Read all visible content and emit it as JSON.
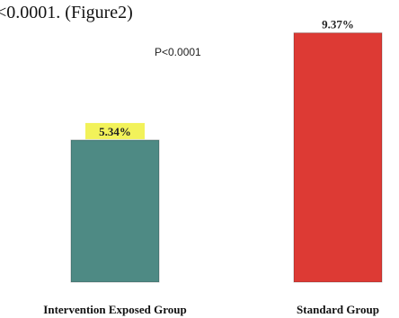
{
  "header_text": "<0.0001. (Figure2)",
  "p_value_text": "P<0.0001",
  "colors": {
    "background": "#ffffff",
    "intervention_bar": "#4e8a84",
    "standard_bar": "#dd3a34",
    "highlight": "#f2f25a"
  },
  "chart_data": {
    "type": "bar",
    "categories": [
      "Intervention Exposed Group",
      "Standard Group"
    ],
    "values": [
      5.34,
      9.37
    ],
    "value_labels": [
      "5.34%",
      "9.37%"
    ],
    "highlighted_labels": [
      true,
      false
    ],
    "title": "",
    "xlabel": "",
    "ylabel": "",
    "ylim": [
      0,
      10
    ],
    "grid": false,
    "legend": "none"
  }
}
